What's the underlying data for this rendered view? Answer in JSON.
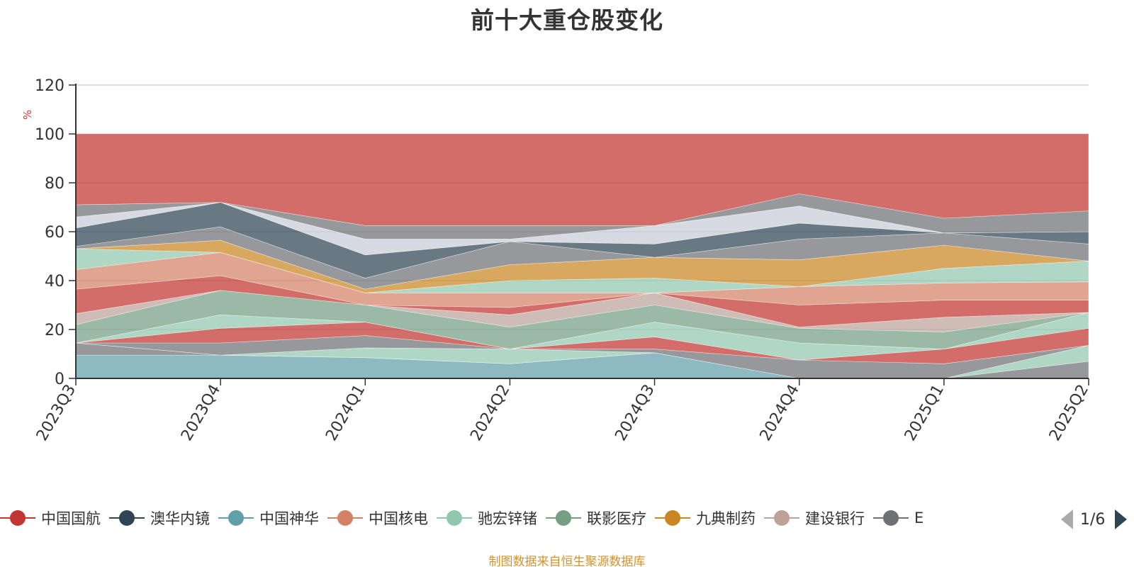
{
  "title": "前十大重仓股变化",
  "footer": "制图数据来自恒生聚源数据库",
  "pager": {
    "label": "1/6"
  },
  "chart_data": {
    "type": "area",
    "stacked": true,
    "ylabel": "%",
    "ylim": [
      0,
      120
    ],
    "yticks": [
      0,
      20,
      40,
      60,
      80,
      100,
      120
    ],
    "grid": true,
    "legend_position": "bottom",
    "categories": [
      "2023Q3",
      "2023Q4",
      "2024Q1",
      "2024Q2",
      "2024Q3",
      "2024Q4",
      "2025Q1",
      "2025Q2"
    ],
    "legend": [
      {
        "name": "中国国航",
        "color": "#c23531"
      },
      {
        "name": "澳华内镜",
        "color": "#2f4554"
      },
      {
        "name": "中国神华",
        "color": "#61a0a8"
      },
      {
        "name": "中国核电",
        "color": "#d48265"
      },
      {
        "name": "驰宏锌锗",
        "color": "#91c7ae"
      },
      {
        "name": "联影医疗",
        "color": "#749f83"
      },
      {
        "name": "九典制药",
        "color": "#ca8622"
      },
      {
        "name": "建设银行",
        "color": "#bda29a"
      },
      {
        "name": "E",
        "color": "#6e7074"
      }
    ],
    "boundaries": [
      [
        9.5,
        9.5,
        8.5,
        6,
        10.5,
        0,
        0,
        0
      ],
      [
        14.5,
        9.5,
        8.5,
        6,
        10.5,
        0,
        0,
        7
      ],
      [
        14.5,
        9.5,
        12.5,
        12,
        10.5,
        0,
        0,
        13.5
      ],
      [
        14.5,
        14.5,
        17.5,
        12,
        12,
        7.5,
        6,
        13.5
      ],
      [
        14.5,
        20.5,
        23,
        12,
        17,
        7.5,
        12,
        20.5
      ],
      [
        14.5,
        26,
        23,
        12,
        23,
        14.5,
        12,
        27
      ],
      [
        22,
        36,
        30,
        21,
        30,
        20.5,
        19,
        27
      ],
      [
        26.5,
        36,
        30,
        26,
        35,
        21,
        25,
        27
      ],
      [
        36.5,
        42,
        30,
        29,
        35,
        30,
        32,
        32
      ],
      [
        44.5,
        51.5,
        35,
        35,
        35,
        37.5,
        39,
        39.5
      ],
      [
        53,
        51.5,
        35,
        40,
        41,
        37.5,
        45,
        48
      ],
      [
        53,
        56.5,
        36.5,
        46.5,
        49.5,
        48.5,
        54.5,
        48
      ],
      [
        54,
        62,
        41,
        56,
        49.5,
        57,
        59.5,
        55
      ],
      [
        61.5,
        72,
        50.5,
        56,
        55,
        63.5,
        59.5,
        60
      ],
      [
        66,
        72,
        57,
        57,
        62.5,
        70.5,
        59.5,
        60
      ],
      [
        71,
        72,
        62.5,
        62.5,
        62.5,
        75.5,
        65.5,
        68.5
      ],
      [
        100,
        100,
        100,
        100,
        100,
        100,
        100,
        100
      ]
    ],
    "band_colors": [
      "#61a0a8",
      "#6e7074",
      "#91c7ae",
      "#6e7074",
      "#c23531",
      "#91c7ae",
      "#749f83",
      "#bda29a",
      "#c23531",
      "#d48265",
      "#91c7ae",
      "#ca8622",
      "#6e7074",
      "#2f4554",
      "#c8ccd4",
      "#6e7074",
      "#c23531"
    ]
  }
}
